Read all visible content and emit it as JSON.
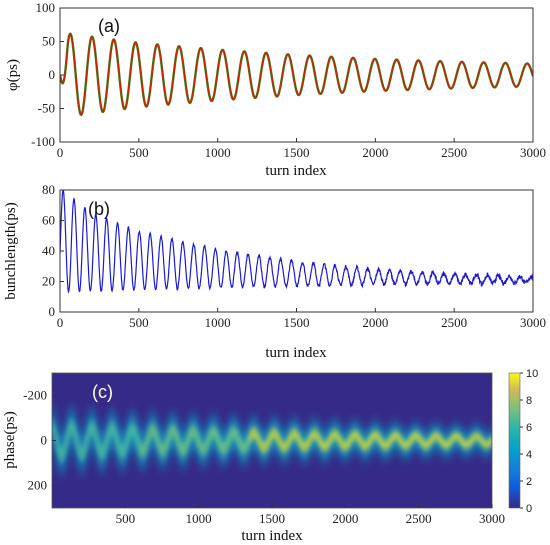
{
  "chart_data": [
    {
      "type": "line",
      "panel_label": "(a)",
      "xlabel": "turn index",
      "ylabel": "φ(ps)",
      "xlim": [
        0,
        3000
      ],
      "ylim": [
        -100,
        100
      ],
      "xticks": [
        0,
        500,
        1000,
        1500,
        2000,
        2500,
        3000
      ],
      "yticks": [
        100,
        50,
        0,
        -50,
        -100
      ],
      "grid": false,
      "series": [
        {
          "color": "#cc2200",
          "shadow_color": "#3f7f1f",
          "oscillation_period_turns": 138,
          "amplitude_envelope": [
            [
              50,
              62
            ],
            [
              500,
              48
            ],
            [
              1000,
              38
            ],
            [
              1500,
              30
            ],
            [
              2000,
              24
            ],
            [
              2500,
              20
            ],
            [
              3000,
              17
            ]
          ]
        }
      ]
    },
    {
      "type": "line",
      "panel_label": "(b)",
      "xlabel": "turn index",
      "ylabel": "bunchlength(ps)",
      "xlim": [
        0,
        3000
      ],
      "ylim": [
        0,
        80
      ],
      "xticks": [
        0,
        500,
        1000,
        1500,
        2000,
        2500,
        3000
      ],
      "yticks": [
        80,
        60,
        40,
        20,
        0
      ],
      "grid": false,
      "series": [
        {
          "color": "#1a1ad6",
          "oscillation_period_turns": 69,
          "peak_envelope": [
            [
              20,
              80
            ],
            [
              200,
              65
            ],
            [
              500,
              53
            ],
            [
              1000,
              41
            ],
            [
              1500,
              33
            ],
            [
              2000,
              28
            ],
            [
              2500,
              25
            ],
            [
              3000,
              23
            ]
          ],
          "trough_envelope": [
            [
              0,
              13
            ],
            [
              1000,
              16
            ],
            [
              2000,
              18
            ],
            [
              3000,
              19
            ]
          ]
        }
      ]
    },
    {
      "type": "heatmap",
      "panel_label": "(c)",
      "xlabel": "turn index",
      "ylabel": "phase(ps)",
      "xlim": [
        0,
        3000
      ],
      "ylim": [
        -300,
        300
      ],
      "xticks": [
        500,
        1000,
        1500,
        2000,
        2500,
        3000
      ],
      "yticks": [
        -200,
        0,
        200
      ],
      "y_reversed": true,
      "colorbar": {
        "min": 0,
        "max": 10,
        "ticks": [
          10,
          8,
          6,
          4,
          2,
          0
        ],
        "colormap": "parula"
      }
    }
  ]
}
